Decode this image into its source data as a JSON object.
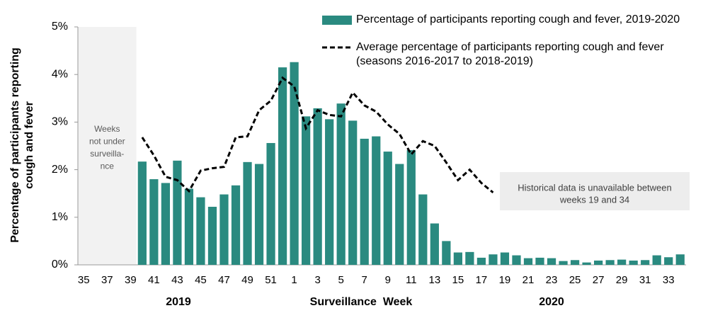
{
  "chart_data": {
    "type": "bar",
    "ylabel": [
      "Percentage of participants reporting",
      "cough and fever"
    ],
    "xlabel": "Surveillance  Week",
    "years": [
      "2019",
      "2020"
    ],
    "categories": [
      "35",
      null,
      "37",
      null,
      "39",
      null,
      "41",
      null,
      "43",
      null,
      "45",
      null,
      "47",
      null,
      "49",
      null,
      "51",
      null,
      "1",
      null,
      "3",
      null,
      "5",
      null,
      "7",
      null,
      "9",
      null,
      "11",
      null,
      "13",
      null,
      "15",
      null,
      "17",
      null,
      "19",
      null,
      "21",
      null,
      "23",
      null,
      "25",
      null,
      "27",
      null,
      "29",
      null,
      "31",
      null,
      "33",
      null
    ],
    "series": [
      {
        "name": "Percentage of participants reporting cough and fever, 2019-2020",
        "type": "bar",
        "color": "#2a8a80",
        "values": [
          null,
          null,
          null,
          null,
          null,
          2.17,
          1.8,
          1.72,
          2.19,
          1.6,
          1.42,
          1.22,
          1.48,
          1.67,
          2.16,
          2.12,
          2.56,
          4.15,
          4.26,
          3.12,
          3.29,
          3.06,
          3.39,
          3.03,
          2.65,
          2.7,
          2.38,
          2.12,
          2.41,
          1.48,
          0.87,
          0.5,
          0.26,
          0.27,
          0.15,
          0.22,
          0.26,
          0.2,
          0.14,
          0.15,
          0.14,
          0.08,
          0.1,
          0.05,
          0.09,
          0.1,
          0.11,
          0.09,
          0.1,
          0.2,
          0.16,
          0.22
        ]
      },
      {
        "name": "Average percentage of participants reporting cough and fever (seasons 2016-2017 to 2018-2019)",
        "type": "line",
        "color": "#000000",
        "values": [
          null,
          null,
          null,
          null,
          null,
          2.68,
          2.3,
          1.85,
          1.78,
          1.55,
          1.98,
          2.03,
          2.06,
          2.68,
          2.7,
          3.25,
          3.45,
          3.93,
          3.75,
          2.87,
          3.25,
          3.15,
          3.12,
          3.62,
          3.35,
          3.22,
          2.95,
          2.75,
          2.32,
          2.6,
          2.5,
          2.15,
          1.78,
          2.0,
          1.72,
          1.52,
          null,
          null,
          null,
          null,
          null,
          null,
          null,
          null,
          null,
          null,
          null,
          null,
          null,
          null,
          null,
          null
        ]
      }
    ],
    "ylim": [
      0,
      5
    ],
    "yticks": [
      {
        "value": 0,
        "label": "0%"
      },
      {
        "value": 1,
        "label": "1%"
      },
      {
        "value": 2,
        "label": "2%"
      },
      {
        "value": 3,
        "label": "3%"
      },
      {
        "value": 4,
        "label": "4%"
      },
      {
        "value": 5,
        "label": "5%"
      }
    ],
    "annotations": [
      {
        "lines": [
          "Weeks",
          "not under",
          "surveilla-",
          "nce"
        ]
      },
      {
        "lines": [
          "Historical data is unavailable between",
          "weeks 19 and 34"
        ]
      }
    ]
  }
}
